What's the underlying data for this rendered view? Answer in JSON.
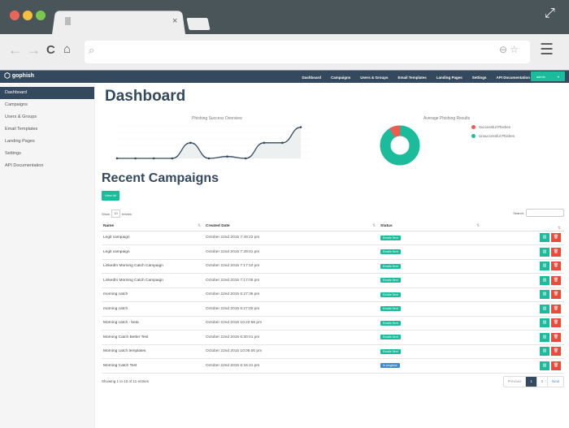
{
  "browser": {
    "tab_title": "",
    "url": "",
    "colors": {
      "close": "#ec6559",
      "min": "#f8bf3a",
      "max": "#7bc84c"
    }
  },
  "nav": {
    "brand": "gophish",
    "links": [
      "Dashboard",
      "Campaigns",
      "Users & Groups",
      "Email Templates",
      "Landing Pages",
      "Settings",
      "API Documentation"
    ],
    "user": "admin"
  },
  "sidebar": {
    "items": [
      {
        "label": "Dashboard",
        "active": true
      },
      {
        "label": "Campaigns"
      },
      {
        "label": "Users & Groups"
      },
      {
        "label": "Email Templates"
      },
      {
        "label": "Landing Pages"
      },
      {
        "label": "Settings"
      },
      {
        "label": "API Documentation"
      }
    ]
  },
  "main": {
    "title": "Dashboard",
    "recent_title": "Recent Campaigns",
    "view_all": "View All",
    "show_label": "Show",
    "show_value": "10",
    "entries_label": "entries",
    "search_label": "Search:",
    "info": "Showing 1 to 10 of 11 entries",
    "pager": {
      "prev": "Previous",
      "pages": [
        "1",
        "2"
      ],
      "next": "Next"
    }
  },
  "table": {
    "headers": [
      "Name",
      "Created Date",
      "Status",
      ""
    ],
    "rows": [
      {
        "name": "Legit campaign",
        "date": "October 22nd 2015 7:49:22 pm",
        "status": "Emails Sent"
      },
      {
        "name": "Legit campaign",
        "date": "October 22nd 2015 7:49:01 pm",
        "status": "Emails Sent"
      },
      {
        "name": "LinkedIn Morning Catch Campaign",
        "date": "October 22nd 2015 7:17:10 pm",
        "status": "Emails Sent"
      },
      {
        "name": "LinkedIn Morning Catch Campaign",
        "date": "October 22nd 2015 7:17:05 pm",
        "status": "Emails Sent"
      },
      {
        "name": "morning catch",
        "date": "October 22nd 2015 6:27:36 pm",
        "status": "Emails Sent"
      },
      {
        "name": "morning catch",
        "date": "October 22nd 2015 6:27:00 pm",
        "status": "Emails Sent"
      },
      {
        "name": "Morning catch - beta",
        "date": "October 22nd 2015 10:22:56 pm",
        "status": "Emails Sent"
      },
      {
        "name": "Morning Catch Better Test",
        "date": "October 22nd 2015 6:30:01 pm",
        "status": "Emails Sent"
      },
      {
        "name": "Morning catch templates",
        "date": "October 22nd 2015 10:06:00 pm",
        "status": "Emails Sent"
      },
      {
        "name": "Morning Catch Test",
        "date": "October 22nd 2015 6:34:41 pm",
        "status": "In progress"
      }
    ]
  },
  "chart_data": [
    {
      "type": "line",
      "title": "Phishing Success Overview",
      "x": [
        "1",
        "2",
        "3",
        "4",
        "5",
        "6",
        "7",
        "8",
        "9",
        "10",
        "11"
      ],
      "values": [
        0,
        0,
        0,
        0,
        2.5,
        0,
        0.3,
        0,
        2.5,
        2.5,
        5
      ],
      "ylim": [
        0,
        6
      ],
      "color": "#34495e"
    },
    {
      "type": "pie",
      "title": "Average Phishing Results",
      "labels": [
        "Successful Phishes",
        "Unsuccessful Phishes"
      ],
      "values": [
        9,
        91
      ],
      "colors": [
        "#f05b4f",
        "#1abc9c"
      ]
    }
  ]
}
